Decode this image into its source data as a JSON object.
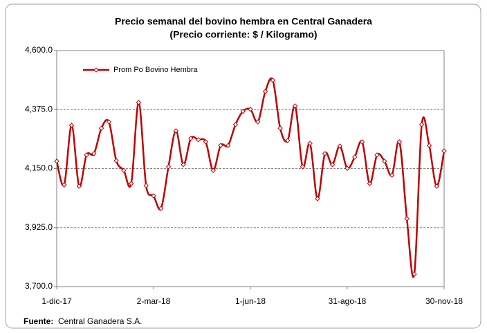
{
  "chart_data": {
    "type": "line",
    "title": "Precio semanal del bovino  hembra en Central Ganadera",
    "subtitle": "(Precio corriente: $ / Kilogramo)",
    "categories": [
      "1-dic-17",
      null,
      null,
      null,
      null,
      null,
      null,
      null,
      null,
      null,
      null,
      null,
      null,
      "2-mar-18",
      null,
      null,
      null,
      null,
      null,
      null,
      null,
      null,
      null,
      null,
      null,
      null,
      "1-jun-18",
      null,
      null,
      null,
      null,
      null,
      null,
      null,
      null,
      null,
      null,
      null,
      null,
      "31-ago-18",
      null,
      null,
      null,
      null,
      null,
      null,
      null,
      null,
      null,
      null,
      null,
      null,
      "30-nov-18"
    ],
    "series": [
      {
        "name": "Prom Po Bovino Hembra",
        "color": "#c00000",
        "values": [
          4178,
          4088,
          4315,
          4083,
          4202,
          4207,
          4304,
          4328,
          4180,
          4143,
          4093,
          4402,
          4085,
          4046,
          3998,
          4157,
          4294,
          4165,
          4265,
          4260,
          4252,
          4143,
          4238,
          4238,
          4318,
          4368,
          4376,
          4328,
          4444,
          4487,
          4304,
          4257,
          4389,
          4157,
          4246,
          4035,
          4207,
          4165,
          4236,
          4151,
          4194,
          4252,
          4093,
          4202,
          4178,
          4125,
          4252,
          3959,
          3748,
          4318,
          4238,
          4083,
          4217
        ]
      }
    ],
    "ylim": [
      3700,
      4600
    ],
    "yticks": [
      {
        "value": 3700,
        "label": "3,700.0"
      },
      {
        "value": 3925,
        "label": "3,925.0"
      },
      {
        "value": 4150,
        "label": "4,150.0"
      },
      {
        "value": 4375,
        "label": "4,375.0"
      },
      {
        "value": 4600,
        "label": "4,600.0"
      }
    ],
    "grid": true,
    "legend": "top-left",
    "source_label": "Fuente:",
    "source": "Central Ganadera S.A."
  }
}
